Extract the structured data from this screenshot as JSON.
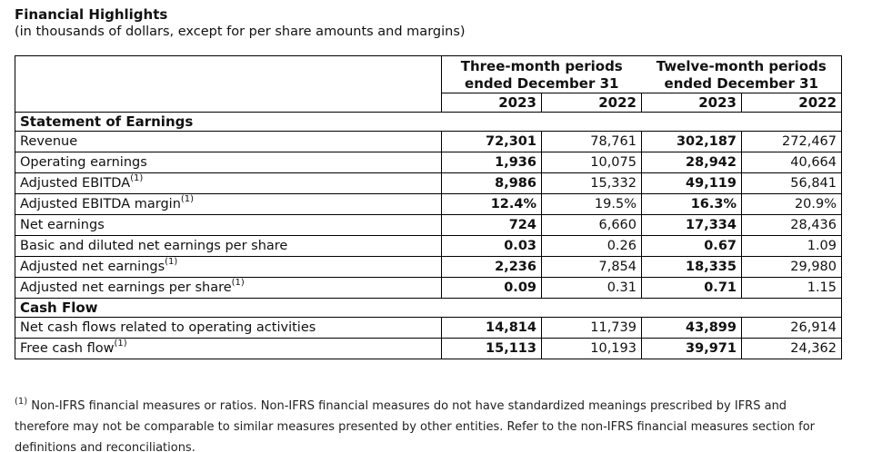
{
  "title": "Financial Highlights",
  "subtitle": "(in thousands of dollars, except for per share amounts and margins)",
  "headers": {
    "three_month_line1": "Three-month periods",
    "three_month_line2": "ended December 31",
    "twelve_month_line1": "Twelve-month periods",
    "twelve_month_line2": "ended December 31",
    "years": [
      "2023",
      "2022",
      "2023",
      "2022"
    ]
  },
  "sections": [
    {
      "title": "Statement of Earnings",
      "rows": [
        {
          "label": "Revenue",
          "sup": "",
          "values": [
            "72,301",
            "78,761",
            "302,187",
            "272,467"
          ]
        },
        {
          "label": "Operating earnings",
          "sup": "",
          "values": [
            "1,936",
            "10,075",
            "28,942",
            "40,664"
          ]
        },
        {
          "label": "Adjusted EBITDA",
          "sup": "(1)",
          "values": [
            "8,986",
            "15,332",
            "49,119",
            "56,841"
          ]
        },
        {
          "label": "Adjusted EBITDA margin",
          "sup": "(1)",
          "values": [
            "12.4%",
            "19.5%",
            "16.3%",
            "20.9%"
          ]
        },
        {
          "label": "Net earnings",
          "sup": "",
          "values": [
            "724",
            "6,660",
            "17,334",
            "28,436"
          ]
        },
        {
          "label": "Basic and diluted net earnings per share",
          "sup": "",
          "values": [
            "0.03",
            "0.26",
            "0.67",
            "1.09"
          ]
        },
        {
          "label": "Adjusted net earnings",
          "sup": "(1)",
          "values": [
            "2,236",
            "7,854",
            "18,335",
            "29,980"
          ]
        },
        {
          "label": "Adjusted net earnings per share",
          "sup": "(1)",
          "values": [
            "0.09",
            "0.31",
            "0.71",
            "1.15"
          ]
        }
      ]
    },
    {
      "title": "Cash Flow",
      "rows": [
        {
          "label": "Net cash flows related to operating activities",
          "sup": "",
          "values": [
            "14,814",
            "11,739",
            "43,899",
            "26,914"
          ]
        },
        {
          "label": "Free cash flow",
          "sup": "(1)",
          "values": [
            "15,113",
            "10,193",
            "39,971",
            "24,362"
          ]
        }
      ]
    }
  ],
  "footnote": {
    "marker": "(1)",
    "text": " Non-IFRS financial measures or ratios. Non-IFRS financial measures do not have standardized meanings prescribed by IFRS and therefore may not be comparable to similar measures presented by other entities. Refer to the non-IFRS financial measures section for definitions and reconciliations."
  }
}
